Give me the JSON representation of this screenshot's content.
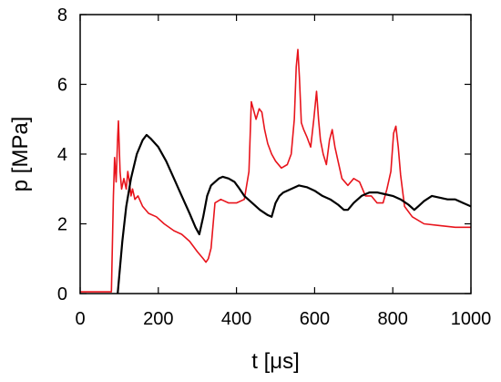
{
  "chart_data": {
    "type": "line",
    "title": "",
    "xlabel": "t [μs]",
    "ylabel": "p [MPa]",
    "xlim": [
      0,
      1000
    ],
    "ylim": [
      0,
      8
    ],
    "xticks": [
      "0",
      "200",
      "400",
      "600",
      "800",
      "1000"
    ],
    "yticks": [
      "0",
      "2",
      "4",
      "6",
      "8"
    ],
    "grid": false,
    "legend": "none",
    "series": [
      {
        "color": "#e8141c",
        "x": [
          0,
          80,
          85,
          88,
          92,
          96,
          98,
          102,
          106,
          112,
          118,
          122,
          126,
          130,
          134,
          140,
          148,
          160,
          175,
          195,
          215,
          240,
          260,
          280,
          300,
          315,
          322,
          328,
          335,
          345,
          360,
          380,
          400,
          420,
          432,
          438,
          443,
          450,
          458,
          465,
          472,
          480,
          490,
          500,
          515,
          530,
          540,
          548,
          553,
          557,
          561,
          566,
          572,
          580,
          590,
          598,
          605,
          610,
          615,
          622,
          630,
          638,
          645,
          652,
          660,
          670,
          685,
          700,
          715,
          730,
          745,
          760,
          775,
          785,
          795,
          802,
          808,
          814,
          820,
          830,
          850,
          880,
          920,
          960,
          1000
        ],
        "y": [
          0.05,
          0.05,
          2.8,
          3.9,
          3.2,
          4.5,
          4.95,
          3.5,
          3.0,
          3.3,
          3.0,
          3.5,
          3.2,
          2.8,
          3.0,
          2.7,
          2.8,
          2.5,
          2.3,
          2.2,
          2.0,
          1.8,
          1.7,
          1.5,
          1.2,
          1.0,
          0.9,
          1.0,
          1.3,
          2.6,
          2.7,
          2.6,
          2.6,
          2.7,
          3.5,
          5.5,
          5.3,
          5.0,
          5.3,
          5.2,
          4.7,
          4.3,
          4.0,
          3.8,
          3.6,
          3.7,
          4.0,
          5.0,
          6.5,
          7.0,
          6.2,
          4.9,
          4.7,
          4.5,
          4.2,
          5.0,
          5.8,
          5.0,
          4.4,
          4.0,
          3.7,
          4.4,
          4.7,
          4.2,
          3.8,
          3.3,
          3.1,
          3.3,
          3.2,
          2.8,
          2.8,
          2.6,
          2.6,
          3.0,
          3.5,
          4.6,
          4.8,
          4.2,
          3.4,
          2.5,
          2.2,
          2.0,
          1.95,
          1.9,
          1.9
        ]
      },
      {
        "color": "#000000",
        "x": [
          0,
          92,
          96,
          100,
          108,
          118,
          130,
          145,
          160,
          170,
          180,
          200,
          220,
          240,
          260,
          280,
          295,
          305,
          315,
          325,
          335,
          345,
          355,
          365,
          380,
          395,
          405,
          420,
          440,
          460,
          480,
          490,
          500,
          510,
          520,
          540,
          560,
          580,
          600,
          620,
          640,
          660,
          675,
          685,
          700,
          720,
          740,
          760,
          780,
          800,
          820,
          840,
          855,
          865,
          880,
          900,
          920,
          940,
          960,
          980,
          1000
        ],
        "y": [
          -0.1,
          -0.1,
          0.0,
          0.5,
          1.5,
          2.5,
          3.3,
          4.0,
          4.4,
          4.55,
          4.45,
          4.2,
          3.8,
          3.3,
          2.8,
          2.3,
          1.9,
          1.7,
          2.2,
          2.8,
          3.1,
          3.2,
          3.3,
          3.35,
          3.3,
          3.2,
          3.05,
          2.8,
          2.6,
          2.4,
          2.25,
          2.2,
          2.6,
          2.8,
          2.9,
          3.0,
          3.1,
          3.05,
          2.95,
          2.8,
          2.7,
          2.55,
          2.4,
          2.4,
          2.6,
          2.8,
          2.9,
          2.9,
          2.85,
          2.8,
          2.7,
          2.55,
          2.4,
          2.5,
          2.65,
          2.8,
          2.75,
          2.7,
          2.7,
          2.6,
          2.5
        ]
      }
    ]
  }
}
